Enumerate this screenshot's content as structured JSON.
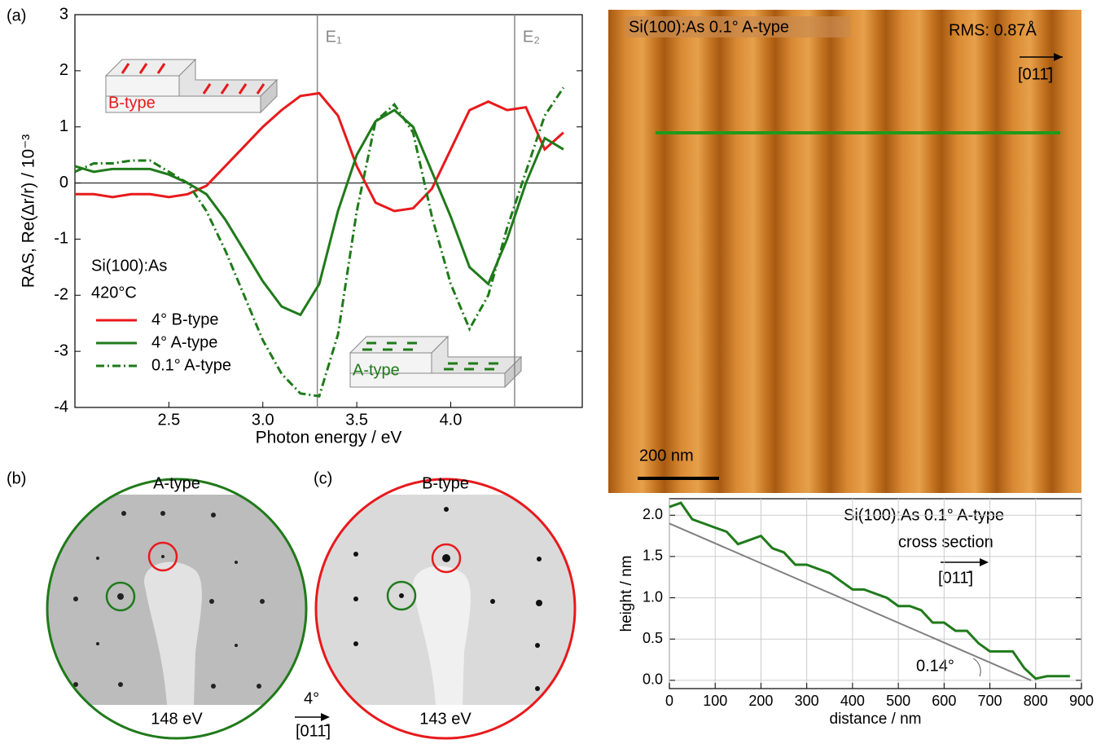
{
  "chart_data": [
    {
      "type": "line",
      "panel_label": "(a)",
      "xlabel": "Photon energy / eV",
      "ylabel": "RAS, Re(Δr/r) / 10⁻³",
      "x": [
        2.0,
        2.1,
        2.2,
        2.3,
        2.4,
        2.5,
        2.6,
        2.7,
        2.8,
        2.9,
        3.0,
        3.1,
        3.2,
        3.3,
        3.4,
        3.5,
        3.6,
        3.7,
        3.8,
        3.9,
        4.0,
        4.1,
        4.2,
        4.3,
        4.4,
        4.5,
        4.6
      ],
      "series": [
        {
          "name": "4° B-type",
          "color": "#e8191c",
          "linestyle": "solid",
          "values": [
            -0.2,
            -0.2,
            -0.25,
            -0.2,
            -0.2,
            -0.25,
            -0.2,
            -0.05,
            0.3,
            0.65,
            1.0,
            1.3,
            1.55,
            1.6,
            1.2,
            0.3,
            -0.35,
            -0.5,
            -0.45,
            -0.1,
            0.6,
            1.3,
            1.45,
            1.3,
            1.35,
            0.6,
            0.9
          ]
        },
        {
          "name": "4° A-type",
          "color": "#1f7a1a",
          "linestyle": "solid",
          "values": [
            0.3,
            0.2,
            0.25,
            0.25,
            0.25,
            0.15,
            0.0,
            -0.2,
            -0.65,
            -1.2,
            -1.75,
            -2.2,
            -2.35,
            -1.8,
            -0.5,
            0.5,
            1.1,
            1.3,
            1.0,
            0.2,
            -0.6,
            -1.5,
            -1.8,
            -1.0,
            0.0,
            0.8,
            0.6
          ]
        },
        {
          "name": "0.1° A-type",
          "color": "#1f7a1a",
          "linestyle": "dashdot",
          "values": [
            0.2,
            0.35,
            0.35,
            0.4,
            0.4,
            0.2,
            0.0,
            -0.5,
            -1.2,
            -2.0,
            -2.8,
            -3.4,
            -3.75,
            -3.8,
            -2.7,
            -0.5,
            1.1,
            1.4,
            0.9,
            -0.6,
            -1.8,
            -2.6,
            -2.0,
            -0.8,
            0.2,
            1.2,
            1.7
          ]
        }
      ],
      "xlim": [
        2.0,
        4.7
      ],
      "ylim": [
        -4,
        3
      ],
      "xticks": [
        2.5,
        {
          "value": 3,
          "label": "3.0"
        },
        3.5,
        {
          "value": 4,
          "label": "4.0"
        }
      ],
      "yticks": [
        -4,
        -3,
        -2,
        -1,
        0,
        1,
        2,
        3
      ],
      "grid": false,
      "vlines": [
        {
          "x": 3.29,
          "label": "E₁"
        },
        {
          "x": 4.34,
          "label": "E₂"
        }
      ],
      "annotations": [
        "Si(100):As",
        "420°C",
        "B-type",
        "A-type"
      ]
    },
    {
      "type": "line",
      "panel_label": "",
      "title": "Si(100):As 0.1° A-type",
      "xlabel": "distance / nm",
      "ylabel": "height / nm",
      "series": [
        {
          "color": "#1f7a1a",
          "x": [
            0,
            25,
            50,
            75,
            100,
            125,
            150,
            175,
            200,
            225,
            250,
            275,
            300,
            325,
            350,
            375,
            400,
            425,
            450,
            475,
            500,
            525,
            550,
            575,
            600,
            625,
            650,
            675,
            700,
            725,
            750,
            775,
            800,
            825,
            850,
            875
          ],
          "values": [
            2.1,
            2.15,
            1.95,
            1.9,
            1.85,
            1.8,
            1.65,
            1.7,
            1.75,
            1.6,
            1.55,
            1.4,
            1.4,
            1.35,
            1.3,
            1.2,
            1.1,
            1.1,
            1.05,
            1.0,
            0.9,
            0.9,
            0.85,
            0.7,
            0.7,
            0.6,
            0.6,
            0.45,
            0.35,
            0.35,
            0.35,
            0.15,
            0.02,
            0.05,
            0.05,
            0.05
          ]
        },
        {
          "color": "#808080",
          "x": [
            0,
            790
          ],
          "values": [
            1.9,
            0.0
          ]
        }
      ],
      "xlim": [
        0,
        900
      ],
      "ylim": [
        -0.1,
        2.2
      ],
      "xticks": [
        0,
        100,
        200,
        300,
        400,
        500,
        600,
        700,
        800,
        900
      ],
      "yticks": [
        {
          "value": 0,
          "label": "0.0"
        },
        0.5,
        {
          "value": 1,
          "label": "1.0"
        },
        1.5,
        {
          "value": 2,
          "label": "2.0"
        }
      ],
      "grid": true,
      "annotations": [
        "cross section",
        "[011̄]",
        "0.14°"
      ]
    }
  ],
  "stm": {
    "title": "Si(100):As 0.1° A-type",
    "rms": "RMS: 0.87Å",
    "direction": "[011̄]",
    "scale_bar": "200 nm"
  },
  "leed": {
    "b": {
      "panel_label": "(b)",
      "label": "A-type",
      "energy": "148 eV"
    },
    "c": {
      "panel_label": "(c)",
      "label": "B-type",
      "energy": "143 eV"
    },
    "miscut": "4°",
    "direction": "[011̄]"
  }
}
